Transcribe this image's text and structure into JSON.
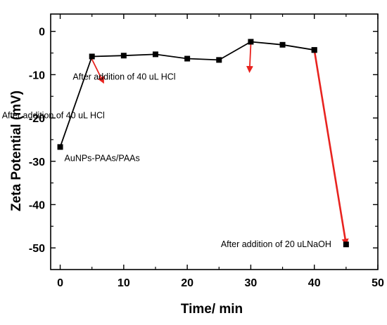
{
  "chart_data": {
    "type": "line",
    "title": "",
    "xlabel": "Time/ min",
    "ylabel": "Zeta Potential (mV)",
    "xlim": [
      -1.5,
      50
    ],
    "ylim": [
      -55,
      4
    ],
    "xticks": [
      0,
      10,
      20,
      30,
      40,
      50
    ],
    "yticks": [
      0,
      -10,
      -20,
      -30,
      -40,
      -50
    ],
    "grid": false,
    "legend": "none",
    "series": [
      {
        "x": [
          0,
          5,
          10,
          15,
          20,
          25,
          30,
          35,
          40
        ],
        "y": [
          -26.7,
          -5.8,
          -5.6,
          -5.3,
          -6.3,
          -6.6,
          -2.4,
          -3.1,
          -4.3
        ],
        "color": "#000000",
        "marker": "square"
      },
      {
        "x": [
          40,
          45
        ],
        "y": [
          -4.3,
          -49.2
        ],
        "color": "#e8231f",
        "marker": "square"
      }
    ],
    "annotations": [
      {
        "text": "AuNPs-PAAs/PAAs",
        "x": 0,
        "y": -26.7
      },
      {
        "text": "After addition of 40 uL HCl",
        "x": 5,
        "y": -5.8
      },
      {
        "text": "After addition of 40 uL HCl",
        "x": 30,
        "y": -2.4
      },
      {
        "text": "After addition of 20 uLNaOH",
        "x": 45,
        "y": -49.2
      }
    ],
    "colors": {
      "axis": "#000000",
      "line": "#000000",
      "arrow": "#e8231f"
    }
  }
}
